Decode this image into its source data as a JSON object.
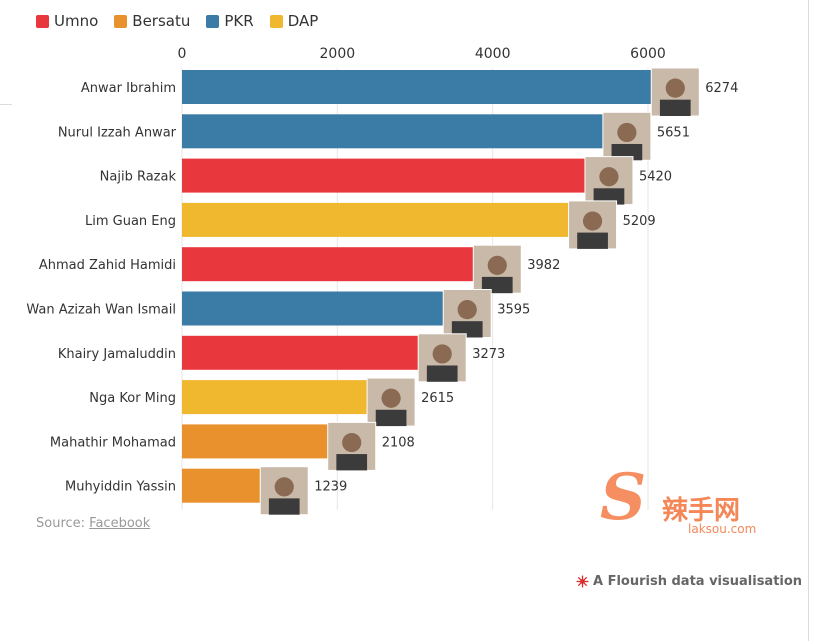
{
  "legend": [
    {
      "label": "Umno",
      "color": "#e8383d"
    },
    {
      "label": "Bersatu",
      "color": "#e8912d"
    },
    {
      "label": "PKR",
      "color": "#3a7ca5"
    },
    {
      "label": "DAP",
      "color": "#f0b82e"
    }
  ],
  "chart_data": {
    "type": "bar",
    "orientation": "horizontal",
    "xlim": [
      0,
      7000
    ],
    "x_ticks": [
      0,
      2000,
      4000,
      6000
    ],
    "gridlines": true,
    "categories": [
      "Anwar Ibrahim",
      "Nurul Izzah Anwar",
      "Najib Razak",
      "Lim Guan Eng",
      "Ahmad Zahid Hamidi",
      "Wan Azizah Wan Ismail",
      "Khairy Jamaluddin",
      "Nga Kor Ming",
      "Mahathir Mohamad",
      "Muhyiddin Yassin"
    ],
    "values": [
      6274,
      5651,
      5420,
      5209,
      3982,
      3595,
      3273,
      2615,
      2108,
      1239
    ],
    "parties": [
      "PKR",
      "PKR",
      "Umno",
      "DAP",
      "Umno",
      "PKR",
      "Umno",
      "DAP",
      "Bersatu",
      "Bersatu"
    ]
  },
  "source": {
    "label": "Source:",
    "link": "Facebook"
  },
  "credit": "A Flourish data visualisation",
  "watermark": {
    "brand": "辣手网",
    "url": "laksou.com"
  },
  "icons": {
    "flourish": "flourish-star-icon",
    "photo": "portrait-photo"
  }
}
